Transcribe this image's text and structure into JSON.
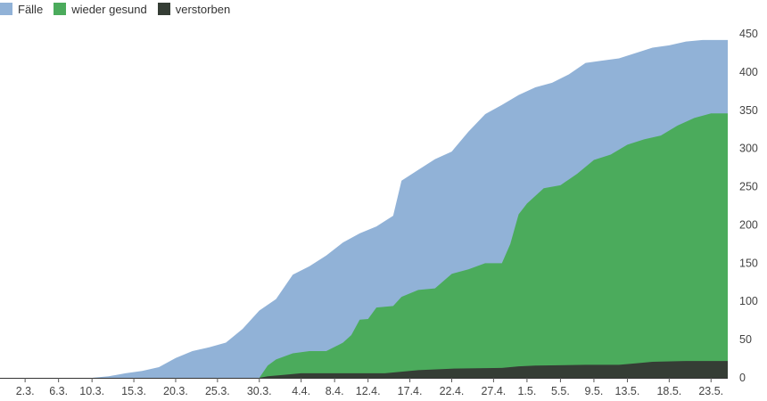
{
  "chart_data": {
    "type": "area",
    "stacked": false,
    "x_start": "2020-02-28",
    "x_end": "2020-05-25",
    "ylim": [
      0,
      450
    ],
    "y_ticks": [
      0,
      50,
      100,
      150,
      200,
      250,
      300,
      350,
      400,
      450
    ],
    "y_tick_labels": [
      "0",
      "50",
      "100",
      "150",
      "200",
      "250",
      "300",
      "350",
      "400",
      "450"
    ],
    "x_ticks": [
      "2020-03-02",
      "2020-03-06",
      "2020-03-10",
      "2020-03-15",
      "2020-03-20",
      "2020-03-25",
      "2020-03-30",
      "2020-04-04",
      "2020-04-08",
      "2020-04-12",
      "2020-04-17",
      "2020-04-22",
      "2020-04-27",
      "2020-05-01",
      "2020-05-05",
      "2020-05-09",
      "2020-05-13",
      "2020-05-18",
      "2020-05-23"
    ],
    "x_tick_labels": [
      "2.3.",
      "6.3.",
      "10.3.",
      "15.3.",
      "20.3.",
      "25.3.",
      "30.3.",
      "4.4.",
      "8.4.",
      "12.4.",
      "17.4.",
      "22.4.",
      "27.4.",
      "1.5.",
      "5.5.",
      "9.5.",
      "13.5.",
      "18.5.",
      "23.5."
    ],
    "legend_position": "top-left",
    "grid": false,
    "series": [
      {
        "name": "Fälle",
        "color": "#91b2d7",
        "points": [
          [
            "2020-02-28",
            0
          ],
          [
            "2020-03-10",
            0
          ],
          [
            "2020-03-12",
            2
          ],
          [
            "2020-03-14",
            6
          ],
          [
            "2020-03-16",
            9
          ],
          [
            "2020-03-18",
            14
          ],
          [
            "2020-03-20",
            26
          ],
          [
            "2020-03-22",
            35
          ],
          [
            "2020-03-24",
            40
          ],
          [
            "2020-03-26",
            46
          ],
          [
            "2020-03-28",
            64
          ],
          [
            "2020-03-30",
            88
          ],
          [
            "2020-04-01",
            103
          ],
          [
            "2020-04-03",
            135
          ],
          [
            "2020-04-05",
            146
          ],
          [
            "2020-04-07",
            160
          ],
          [
            "2020-04-09",
            177
          ],
          [
            "2020-04-11",
            189
          ],
          [
            "2020-04-13",
            198
          ],
          [
            "2020-04-15",
            212
          ],
          [
            "2020-04-16",
            258
          ],
          [
            "2020-04-18",
            272
          ],
          [
            "2020-04-20",
            286
          ],
          [
            "2020-04-22",
            296
          ],
          [
            "2020-04-24",
            322
          ],
          [
            "2020-04-26",
            345
          ],
          [
            "2020-04-28",
            357
          ],
          [
            "2020-04-30",
            370
          ],
          [
            "2020-05-02",
            380
          ],
          [
            "2020-05-04",
            386
          ],
          [
            "2020-05-06",
            397
          ],
          [
            "2020-05-08",
            412
          ],
          [
            "2020-05-10",
            415
          ],
          [
            "2020-05-12",
            418
          ],
          [
            "2020-05-14",
            425
          ],
          [
            "2020-05-16",
            432
          ],
          [
            "2020-05-18",
            435
          ],
          [
            "2020-05-20",
            440
          ],
          [
            "2020-05-22",
            442
          ],
          [
            "2020-05-25",
            442
          ]
        ]
      },
      {
        "name": "wieder gesund",
        "color": "#4bab5c",
        "points": [
          [
            "2020-02-28",
            0
          ],
          [
            "2020-03-30",
            0
          ],
          [
            "2020-03-31",
            16
          ],
          [
            "2020-04-01",
            24
          ],
          [
            "2020-04-03",
            32
          ],
          [
            "2020-04-05",
            35
          ],
          [
            "2020-04-07",
            35
          ],
          [
            "2020-04-09",
            46
          ],
          [
            "2020-04-10",
            56
          ],
          [
            "2020-04-11",
            76
          ],
          [
            "2020-04-12",
            77
          ],
          [
            "2020-04-13",
            92
          ],
          [
            "2020-04-15",
            94
          ],
          [
            "2020-04-16",
            106
          ],
          [
            "2020-04-18",
            115
          ],
          [
            "2020-04-20",
            117
          ],
          [
            "2020-04-22",
            136
          ],
          [
            "2020-04-24",
            142
          ],
          [
            "2020-04-26",
            150
          ],
          [
            "2020-04-28",
            150
          ],
          [
            "2020-04-29",
            175
          ],
          [
            "2020-04-30",
            214
          ],
          [
            "2020-05-01",
            228
          ],
          [
            "2020-05-03",
            248
          ],
          [
            "2020-05-05",
            252
          ],
          [
            "2020-05-07",
            267
          ],
          [
            "2020-05-09",
            285
          ],
          [
            "2020-05-11",
            292
          ],
          [
            "2020-05-13",
            305
          ],
          [
            "2020-05-15",
            312
          ],
          [
            "2020-05-17",
            317
          ],
          [
            "2020-05-19",
            330
          ],
          [
            "2020-05-21",
            340
          ],
          [
            "2020-05-23",
            346
          ],
          [
            "2020-05-25",
            346
          ]
        ]
      },
      {
        "name": "verstorben",
        "color": "#353d35",
        "points": [
          [
            "2020-02-28",
            0
          ],
          [
            "2020-03-30",
            0
          ],
          [
            "2020-03-31",
            2
          ],
          [
            "2020-04-02",
            4
          ],
          [
            "2020-04-04",
            6
          ],
          [
            "2020-04-14",
            6
          ],
          [
            "2020-04-16",
            8
          ],
          [
            "2020-04-18",
            10
          ],
          [
            "2020-04-22",
            12
          ],
          [
            "2020-04-28",
            13
          ],
          [
            "2020-04-30",
            15
          ],
          [
            "2020-05-02",
            16
          ],
          [
            "2020-05-08",
            17
          ],
          [
            "2020-05-12",
            17
          ],
          [
            "2020-05-14",
            19
          ],
          [
            "2020-05-16",
            21
          ],
          [
            "2020-05-20",
            22
          ],
          [
            "2020-05-25",
            22
          ]
        ]
      }
    ]
  }
}
